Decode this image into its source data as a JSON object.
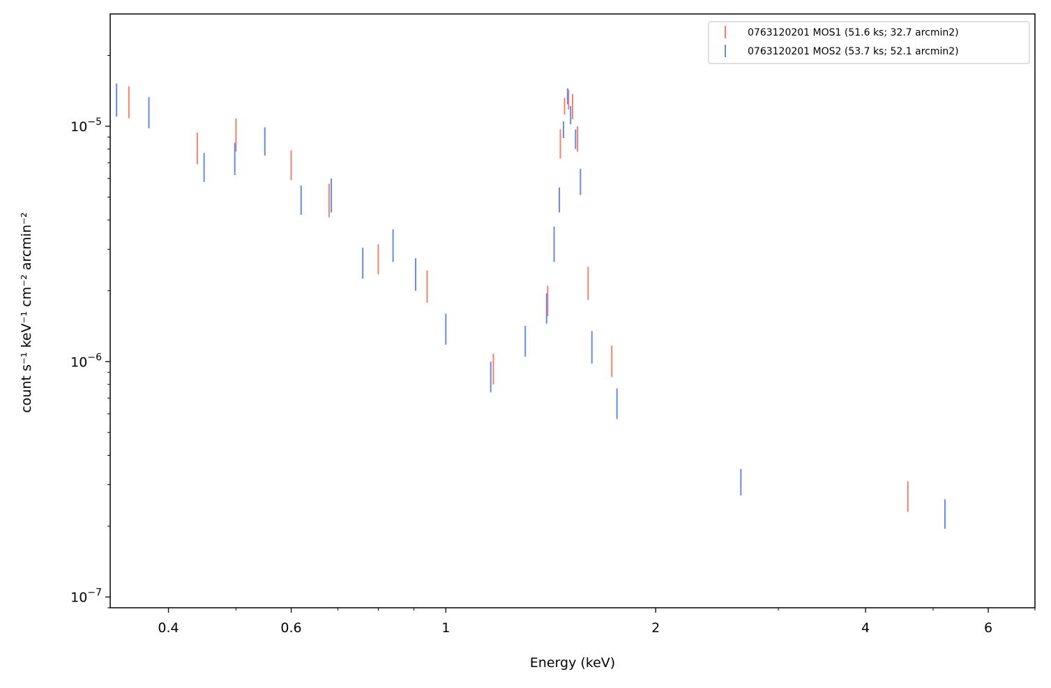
{
  "chart_data": {
    "type": "scatter",
    "xlabel": "Energy (keV)",
    "ylabel": "count s⁻¹ keV⁻¹ cm⁻² arcmin⁻²",
    "xscale": "log",
    "yscale": "log",
    "xlim": [
      0.33,
      7.0
    ],
    "ylim": [
      9e-08,
      3e-05
    ],
    "x_ticks": [
      {
        "value": 0.4,
        "label": "0.4"
      },
      {
        "value": 0.6,
        "label": "0.6"
      },
      {
        "value": 1,
        "label": "1"
      },
      {
        "value": 2,
        "label": "2"
      },
      {
        "value": 4,
        "label": "4"
      },
      {
        "value": 6,
        "label": "6"
      }
    ],
    "y_ticks": [
      {
        "value": 1e-05,
        "base": "10",
        "exp": "−5"
      },
      {
        "value": 1e-06,
        "base": "10",
        "exp": "−6"
      },
      {
        "value": 1e-07,
        "base": "10",
        "exp": "−7"
      }
    ],
    "grid": false,
    "legend_position": "top-right",
    "series": [
      {
        "name": "0763120201 MOS1 (51.6 ks; 32.7 arcmin2)",
        "color": "#f08070",
        "points": [
          {
            "x": 0.351,
            "ylo": 1.08e-05,
            "yhi": 1.48e-05
          },
          {
            "x": 0.44,
            "ylo": 6.9e-06,
            "yhi": 9.4e-06
          },
          {
            "x": 0.5,
            "ylo": 7.8e-06,
            "yhi": 1.08e-05
          },
          {
            "x": 0.6,
            "ylo": 5.9e-06,
            "yhi": 7.9e-06
          },
          {
            "x": 0.68,
            "ylo": 4.1e-06,
            "yhi": 5.7e-06
          },
          {
            "x": 0.8,
            "ylo": 2.35e-06,
            "yhi": 3.15e-06
          },
          {
            "x": 0.94,
            "ylo": 1.78e-06,
            "yhi": 2.44e-06
          },
          {
            "x": 1.17,
            "ylo": 8e-07,
            "yhi": 1.08e-06
          },
          {
            "x": 1.4,
            "ylo": 1.56e-06,
            "yhi": 2.1e-06
          },
          {
            "x": 1.46,
            "ylo": 7.3e-06,
            "yhi": 9.7e-06
          },
          {
            "x": 1.48,
            "ylo": 1.12e-05,
            "yhi": 1.32e-05
          },
          {
            "x": 1.5,
            "ylo": 1.18e-05,
            "yhi": 1.43e-05
          },
          {
            "x": 1.52,
            "ylo": 1.07e-05,
            "yhi": 1.37e-05
          },
          {
            "x": 1.545,
            "ylo": 7.8e-06,
            "yhi": 1e-05
          },
          {
            "x": 1.6,
            "ylo": 1.83e-06,
            "yhi": 2.53e-06
          },
          {
            "x": 1.73,
            "ylo": 8.6e-07,
            "yhi": 1.17e-06
          },
          {
            "x": 4.6,
            "ylo": 2.3e-07,
            "yhi": 3.1e-07
          }
        ]
      },
      {
        "name": "0763120201 MOS2 (53.7 ks; 52.1 arcmin2)",
        "color": "#6a8ae0",
        "points": [
          {
            "x": 0.337,
            "ylo": 1.1e-05,
            "yhi": 1.52e-05
          },
          {
            "x": 0.375,
            "ylo": 9.8e-06,
            "yhi": 1.33e-05
          },
          {
            "x": 0.45,
            "ylo": 5.8e-06,
            "yhi": 7.7e-06
          },
          {
            "x": 0.498,
            "ylo": 6.2e-06,
            "yhi": 8.5e-06
          },
          {
            "x": 0.55,
            "ylo": 7.5e-06,
            "yhi": 9.9e-06
          },
          {
            "x": 0.62,
            "ylo": 4.2e-06,
            "yhi": 5.6e-06
          },
          {
            "x": 0.685,
            "ylo": 4.3e-06,
            "yhi": 6e-06
          },
          {
            "x": 0.76,
            "ylo": 2.25e-06,
            "yhi": 3.05e-06
          },
          {
            "x": 0.84,
            "ylo": 2.65e-06,
            "yhi": 3.65e-06
          },
          {
            "x": 0.905,
            "ylo": 2e-06,
            "yhi": 2.75e-06
          },
          {
            "x": 1.0,
            "ylo": 1.18e-06,
            "yhi": 1.6e-06
          },
          {
            "x": 1.16,
            "ylo": 7.4e-07,
            "yhi": 1e-06
          },
          {
            "x": 1.3,
            "ylo": 1.05e-06,
            "yhi": 1.42e-06
          },
          {
            "x": 1.395,
            "ylo": 1.45e-06,
            "yhi": 1.95e-06
          },
          {
            "x": 1.43,
            "ylo": 2.65e-06,
            "yhi": 3.75e-06
          },
          {
            "x": 1.455,
            "ylo": 4.3e-06,
            "yhi": 5.5e-06
          },
          {
            "x": 1.475,
            "ylo": 8.9e-06,
            "yhi": 1.05e-05
          },
          {
            "x": 1.495,
            "ylo": 1.24e-05,
            "yhi": 1.45e-05
          },
          {
            "x": 1.51,
            "ylo": 1.02e-05,
            "yhi": 1.22e-05
          },
          {
            "x": 1.535,
            "ylo": 8e-06,
            "yhi": 9.7e-06
          },
          {
            "x": 1.56,
            "ylo": 5.1e-06,
            "yhi": 6.6e-06
          },
          {
            "x": 1.62,
            "ylo": 9.8e-07,
            "yhi": 1.35e-06
          },
          {
            "x": 1.76,
            "ylo": 5.7e-07,
            "yhi": 7.7e-07
          },
          {
            "x": 2.65,
            "ylo": 2.7e-07,
            "yhi": 3.5e-07
          },
          {
            "x": 5.2,
            "ylo": 1.95e-07,
            "yhi": 2.6e-07
          }
        ]
      }
    ]
  }
}
